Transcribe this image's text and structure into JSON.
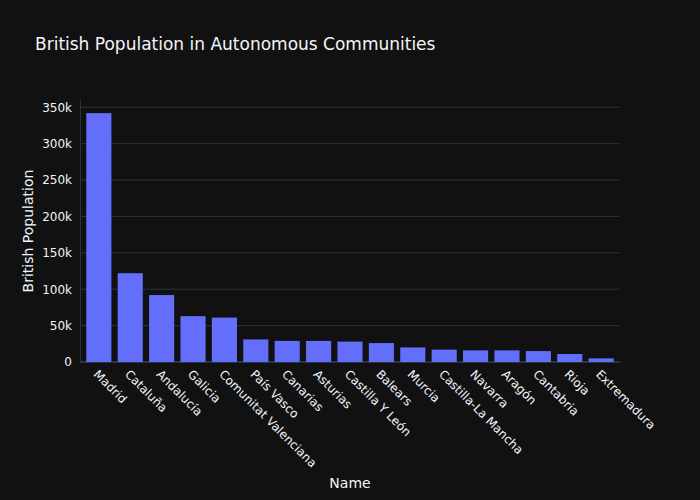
{
  "chart_data": {
    "type": "bar",
    "title": "British Population in Autonomous Communities",
    "x_label": "Name",
    "y_label": "British Population",
    "categories": [
      "Madrid",
      "Cataluña",
      "Andalucía",
      "Galicia",
      "Comunitat Valenciana",
      "País Vasco",
      "Canarias",
      "Asturias",
      "Castilla Y León",
      "Balears",
      "Murcia",
      "Castilla-La Mancha",
      "Navarra",
      "Aragón",
      "Cantabria",
      "Rioja",
      "Extremadura"
    ],
    "values": [
      342000,
      122000,
      92000,
      63000,
      61000,
      31000,
      29000,
      29000,
      28000,
      26000,
      20000,
      17000,
      16000,
      16000,
      15000,
      11000,
      5000
    ],
    "color": "#636efa",
    "ylim": [
      0,
      360000
    ],
    "yticks": [
      0,
      {
        "value": 50000,
        "label": "50k"
      },
      {
        "value": 100000,
        "label": "100k"
      },
      {
        "value": 150000,
        "label": "150k"
      },
      {
        "value": 200000,
        "label": "200k"
      },
      {
        "value": 250000,
        "label": "250k"
      },
      {
        "value": 300000,
        "label": "300k"
      },
      {
        "value": 350000,
        "label": "350k"
      }
    ],
    "grid": true
  }
}
